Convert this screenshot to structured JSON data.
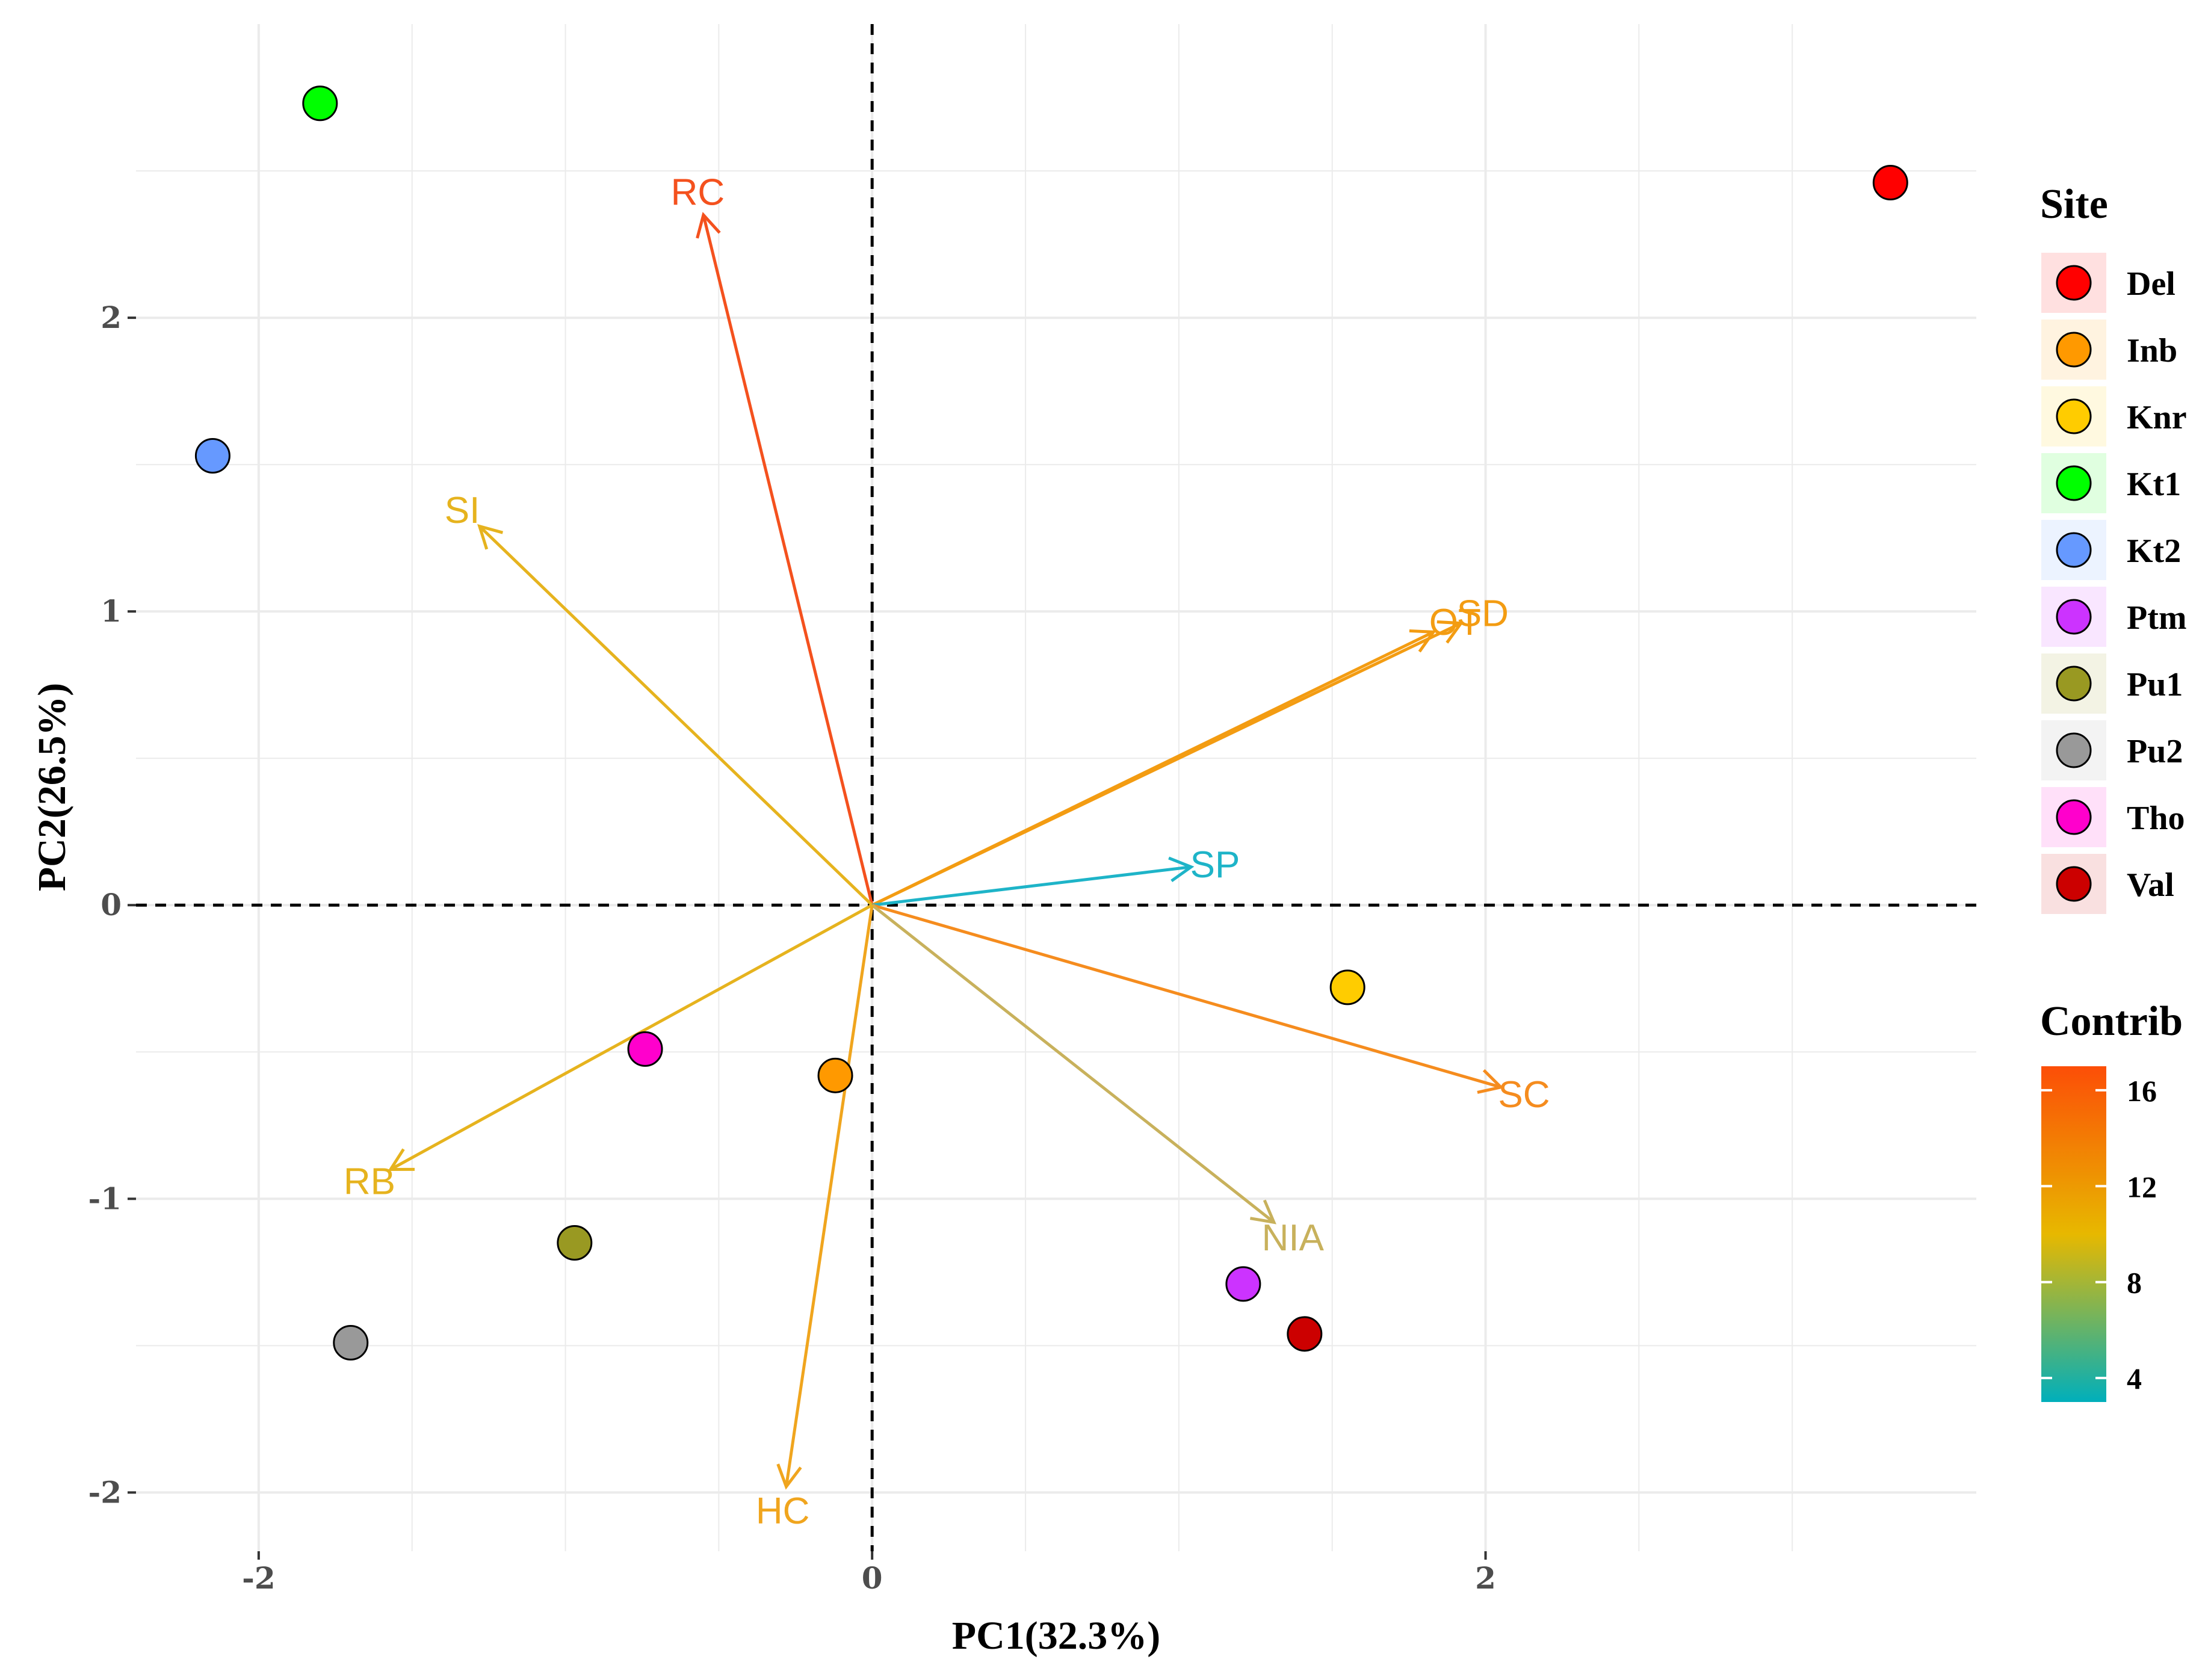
{
  "chart_data": {
    "type": "scatter",
    "subtype": "pca-biplot",
    "xlabel": "PC1(32.3%)",
    "ylabel": "PC2(26.5%)",
    "xlim": [
      -2.4,
      3.6
    ],
    "ylim": [
      -2.2,
      3.0
    ],
    "x_ticks": [
      -2,
      0,
      2
    ],
    "x_tick_labels": [
      "-2",
      "0",
      "2"
    ],
    "y_ticks": [
      -2,
      -1,
      0,
      1,
      2
    ],
    "y_tick_labels": [
      "-2",
      "-1",
      "0",
      "1",
      "2"
    ],
    "grid": true,
    "reference_lines": {
      "x": 0,
      "y": 0,
      "style": "dashed"
    },
    "points": [
      {
        "site": "Del",
        "x": 3.32,
        "y": 2.46,
        "color": "#ff0000"
      },
      {
        "site": "Inb",
        "x": -0.12,
        "y": -0.58,
        "color": "#ff9900"
      },
      {
        "site": "Knr",
        "x": 1.55,
        "y": -0.28,
        "color": "#ffcc00"
      },
      {
        "site": "Kt1",
        "x": -1.8,
        "y": 2.73,
        "color": "#00ff00"
      },
      {
        "site": "Kt2",
        "x": -2.15,
        "y": 1.53,
        "color": "#6699ff"
      },
      {
        "site": "Ptm",
        "x": 1.21,
        "y": -1.29,
        "color": "#cc33ff"
      },
      {
        "site": "Pu1",
        "x": -0.97,
        "y": -1.15,
        "color": "#999922"
      },
      {
        "site": "Pu2",
        "x": -1.7,
        "y": -1.49,
        "color": "#999999"
      },
      {
        "site": "Tho",
        "x": -0.74,
        "y": -0.49,
        "color": "#ff00cc"
      },
      {
        "site": "Val",
        "x": 1.41,
        "y": -1.46,
        "color": "#cc0000"
      }
    ],
    "variables": [
      {
        "name": "RC",
        "x": -0.55,
        "y": 2.35,
        "contrib": 17,
        "color": "#f4511e"
      },
      {
        "name": "SI",
        "x": -1.28,
        "y": 1.29,
        "contrib": 11,
        "color": "#e6b31e"
      },
      {
        "name": "OT",
        "x": 1.83,
        "y": 0.93,
        "contrib": 13,
        "color": "#f39c12"
      },
      {
        "name": "SD",
        "x": 1.92,
        "y": 0.96,
        "contrib": 13,
        "color": "#f39c12"
      },
      {
        "name": "SP",
        "x": 1.04,
        "y": 0.13,
        "contrib": 4,
        "color": "#1eb4c8"
      },
      {
        "name": "SC",
        "x": 2.05,
        "y": -0.62,
        "contrib": 14,
        "color": "#f58c1e"
      },
      {
        "name": "NIA",
        "x": 1.31,
        "y": -1.08,
        "contrib": 8,
        "color": "#c8b15c"
      },
      {
        "name": "HC",
        "x": -0.28,
        "y": -1.98,
        "contrib": 12,
        "color": "#f0a51e"
      },
      {
        "name": "RB",
        "x": -1.57,
        "y": -0.9,
        "contrib": 11,
        "color": "#e6b31e"
      }
    ],
    "legend": {
      "site_title": "Site",
      "contrib_title": "Contrib",
      "position": "right",
      "contrib_range": [
        3,
        17
      ],
      "contrib_ticks": [
        "16",
        "12",
        "8",
        "4"
      ],
      "contrib_tick_values": [
        16,
        12,
        8,
        4
      ],
      "contrib_colors": [
        "#00afbb",
        "#e7b800",
        "#fc4e07"
      ]
    }
  }
}
